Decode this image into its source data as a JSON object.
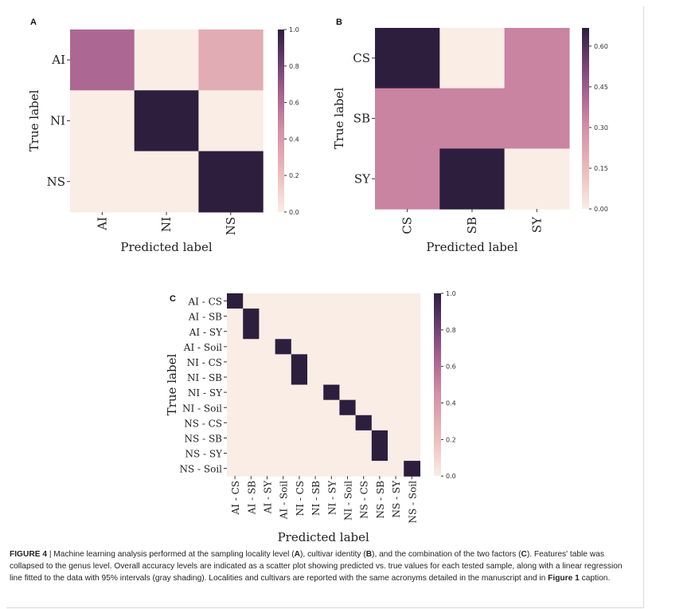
{
  "chart_data": [
    {
      "panel": "A",
      "type": "heatmap",
      "xlabel": "Predicted label",
      "ylabel": "True label",
      "x_categories": [
        "AI",
        "NI",
        "NS"
      ],
      "y_categories": [
        "AI",
        "NI",
        "NS"
      ],
      "values": [
        [
          0.62,
          0.0,
          0.3
        ],
        [
          0.0,
          1.0,
          0.0
        ],
        [
          0.0,
          0.0,
          1.0
        ]
      ],
      "colorbar": {
        "min": 0.0,
        "max": 1.0,
        "ticks": [
          "0.0",
          "0.2",
          "0.4",
          "0.6",
          "0.8",
          "1.0"
        ],
        "tick_values": [
          0.0,
          0.2,
          0.4,
          0.6,
          0.8,
          1.0
        ]
      }
    },
    {
      "panel": "B",
      "type": "heatmap",
      "xlabel": "Predicted label",
      "ylabel": "True label",
      "x_categories": [
        "CS",
        "SB",
        "SY"
      ],
      "y_categories": [
        "CS",
        "SB",
        "SY"
      ],
      "values": [
        [
          0.667,
          0.0,
          0.333
        ],
        [
          0.333,
          0.333,
          0.333
        ],
        [
          0.333,
          0.667,
          0.0
        ]
      ],
      "colorbar": {
        "min": 0.0,
        "max": 0.667,
        "ticks": [
          "0.00",
          "0.15",
          "0.30",
          "0.45",
          "0.60"
        ],
        "tick_values": [
          0.0,
          0.15,
          0.3,
          0.45,
          0.6
        ]
      }
    },
    {
      "panel": "C",
      "type": "heatmap",
      "xlabel": "Predicted label",
      "ylabel": "True label",
      "x_categories": [
        "AI - CS",
        "AI - SB",
        "AI - SY",
        "AI - Soil",
        "NI - CS",
        "NI - SB",
        "NI - SY",
        "NI - Soil",
        "NS - CS",
        "NS - SB",
        "NS - SY",
        "NS - Soil"
      ],
      "y_categories": [
        "AI - CS",
        "AI - SB",
        "AI - SY",
        "AI - Soil",
        "NI - CS",
        "NI - SB",
        "NI - SY",
        "NI - Soil",
        "NS - CS",
        "NS - SB",
        "NS - SY",
        "NS - Soil"
      ],
      "values": [
        [
          1,
          0,
          0,
          0,
          0,
          0,
          0,
          0,
          0,
          0,
          0,
          0
        ],
        [
          0,
          1,
          0,
          0,
          0,
          0,
          0,
          0,
          0,
          0,
          0,
          0
        ],
        [
          0,
          1,
          0,
          0,
          0,
          0,
          0,
          0,
          0,
          0,
          0,
          0
        ],
        [
          0,
          0,
          0,
          1,
          0,
          0,
          0,
          0,
          0,
          0,
          0,
          0
        ],
        [
          0,
          0,
          0,
          0,
          1,
          0,
          0,
          0,
          0,
          0,
          0,
          0
        ],
        [
          0,
          0,
          0,
          0,
          1,
          0,
          0,
          0,
          0,
          0,
          0,
          0
        ],
        [
          0,
          0,
          0,
          0,
          0,
          0,
          1,
          0,
          0,
          0,
          0,
          0
        ],
        [
          0,
          0,
          0,
          0,
          0,
          0,
          0,
          1,
          0,
          0,
          0,
          0
        ],
        [
          0,
          0,
          0,
          0,
          0,
          0,
          0,
          0,
          1,
          0,
          0,
          0
        ],
        [
          0,
          0,
          0,
          0,
          0,
          0,
          0,
          0,
          0,
          1,
          0,
          0
        ],
        [
          0,
          0,
          0,
          0,
          0,
          0,
          0,
          0,
          0,
          1,
          0,
          0
        ],
        [
          0,
          0,
          0,
          0,
          0,
          0,
          0,
          0,
          0,
          0,
          0,
          1
        ]
      ],
      "colorbar": {
        "min": 0.0,
        "max": 1.0,
        "ticks": [
          "0.0",
          "0.2",
          "0.4",
          "0.6",
          "0.8",
          "1.0"
        ],
        "tick_values": [
          0.0,
          0.2,
          0.4,
          0.6,
          0.8,
          1.0
        ]
      }
    }
  ],
  "colormap": {
    "low": "#faede6",
    "mid": "#c87a97",
    "high": "#2d1e3e"
  },
  "caption": {
    "label": "FIGURE 4",
    "text_1": " | Machine learning analysis performed at the sampling locality level (",
    "a": "A",
    "text_2": "), cultivar identity (",
    "b": "B",
    "text_3": "), and the combination of the two factors (",
    "c": "C",
    "text_4": "). Features' table was collapsed to the genus level. Overall accuracy levels are indicated as a scatter plot showing predicted vs. true values for each tested sample, along with a linear regression line fitted to the data with 95% intervals (gray shading). Localities and cultivars are reported with the same acronyms detailed in the manuscript and in ",
    "figref": "Figure 1",
    "text_5": " caption."
  }
}
